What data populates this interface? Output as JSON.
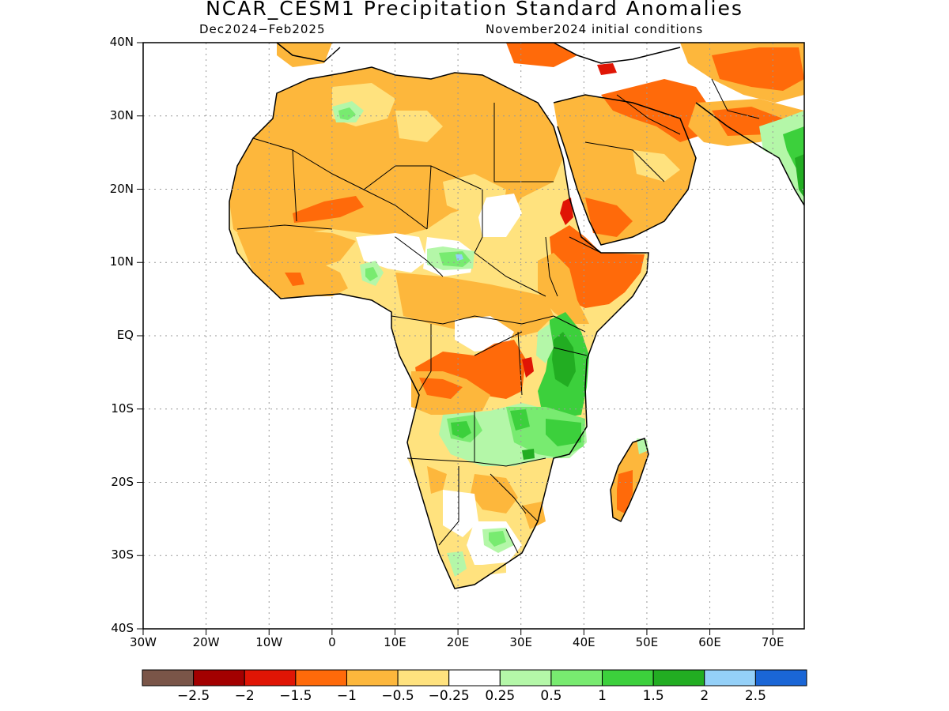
{
  "title": "NCAR_CESM1 Precipitation Standard Anomalies",
  "subtitle_left": "Dec2024−Feb2025",
  "subtitle_right": "November2024 initial conditions",
  "map": {
    "lon_range": [
      -30,
      75
    ],
    "lat_range": [
      -40,
      40
    ],
    "y_ticks": [
      "40N",
      "30N",
      "20N",
      "10N",
      "EQ",
      "10S",
      "20S",
      "30S",
      "40S"
    ],
    "x_ticks": [
      "30W",
      "20W",
      "10W",
      "0",
      "10E",
      "20E",
      "30E",
      "40E",
      "50E",
      "60E",
      "70E"
    ],
    "grid": "dotted",
    "regions": [
      {
        "name": "sahara-north-africa",
        "category": "-1 to -0.5"
      },
      {
        "name": "sahel-west",
        "category": "-1.5 to -1"
      },
      {
        "name": "arabian-peninsula",
        "category": "-1.5 to -1"
      },
      {
        "name": "horn-of-africa",
        "category": "-1.5 to -1"
      },
      {
        "name": "congo-southern-drc",
        "category": "-1.5 to -1"
      },
      {
        "name": "east-africa-kenya-tanzania",
        "category": "1 to 1.5"
      },
      {
        "name": "angola-zambia",
        "category": "1 to 1.5"
      },
      {
        "name": "madagascar",
        "category": "-1.5 to -1"
      },
      {
        "name": "india-west-coast",
        "category": "1 to 1.5"
      }
    ]
  },
  "colorbar": {
    "colors": [
      "#7a5548",
      "#a30000",
      "#e01505",
      "#ff6a0a",
      "#fdb73c",
      "#ffe27e",
      "#ffffff",
      "#b4f7a8",
      "#78eb70",
      "#3cd03c",
      "#22ad22",
      "#94d0f8",
      "#1a66d6"
    ],
    "labels": [
      "−2.5",
      "−2",
      "−1.5",
      "−1",
      "−0.5",
      "−0.25",
      "0.25",
      "0.5",
      "1",
      "1.5",
      "2",
      "2.5"
    ]
  }
}
